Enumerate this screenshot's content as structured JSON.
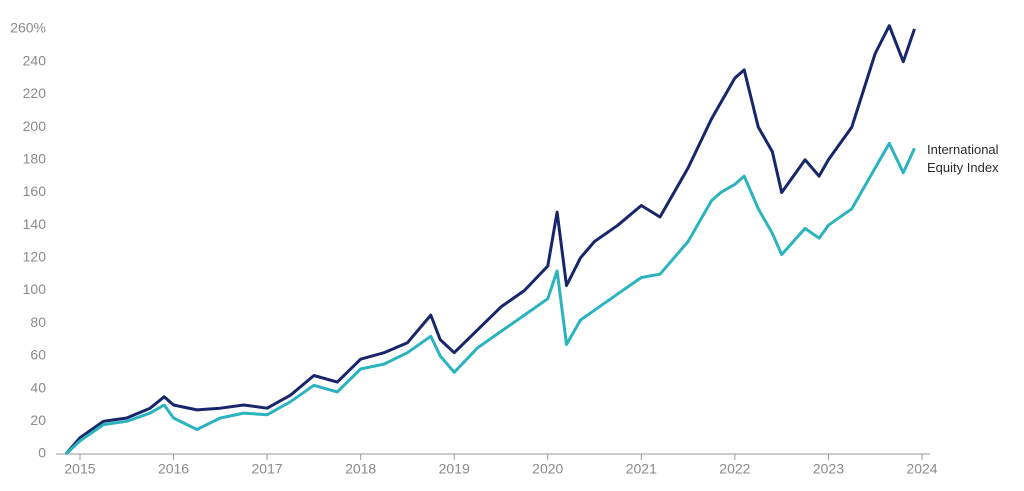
{
  "chart_data": {
    "type": "line",
    "x": [
      2014.85,
      2015.0,
      2015.25,
      2015.5,
      2015.75,
      2015.9,
      2016.0,
      2016.25,
      2016.5,
      2016.75,
      2017.0,
      2017.25,
      2017.5,
      2017.75,
      2018.0,
      2018.25,
      2018.5,
      2018.75,
      2018.85,
      2019.0,
      2019.25,
      2019.5,
      2019.75,
      2020.0,
      2020.1,
      2020.2,
      2020.35,
      2020.5,
      2020.75,
      2021.0,
      2021.2,
      2021.5,
      2021.75,
      2021.85,
      2022.0,
      2022.1,
      2022.25,
      2022.4,
      2022.5,
      2022.75,
      2022.9,
      2023.0,
      2023.25,
      2023.5,
      2023.65,
      2023.8,
      2023.92
    ],
    "series": [
      {
        "color": "#17266b",
        "values": [
          0,
          10,
          20,
          22,
          28,
          35,
          30,
          27,
          28,
          30,
          28,
          36,
          48,
          44,
          58,
          62,
          68,
          85,
          70,
          62,
          76,
          90,
          100,
          115,
          148,
          103,
          120,
          130,
          140,
          152,
          145,
          175,
          205,
          215,
          230,
          235,
          200,
          185,
          160,
          180,
          170,
          180,
          200,
          245,
          262,
          240,
          260
        ]
      },
      {
        "name": "International Equity Index",
        "color": "#2bb3c0",
        "values": [
          0,
          8,
          18,
          20,
          25,
          30,
          22,
          15,
          22,
          25,
          24,
          32,
          42,
          38,
          52,
          55,
          62,
          72,
          60,
          50,
          65,
          75,
          85,
          95,
          112,
          67,
          82,
          88,
          98,
          108,
          110,
          130,
          155,
          160,
          165,
          170,
          150,
          135,
          122,
          138,
          132,
          140,
          150,
          175,
          190,
          172,
          187
        ]
      }
    ],
    "xlim": [
      2014.84,
      2024.0
    ],
    "xticks": [
      2015,
      2016,
      2017,
      2018,
      2019,
      2020,
      2021,
      2022,
      2023,
      2024
    ],
    "ylim": [
      0,
      260
    ],
    "yticks": [
      0,
      20,
      40,
      60,
      80,
      100,
      120,
      140,
      160,
      180,
      200,
      220,
      240,
      {
        "value": 260,
        "label": "260%"
      }
    ]
  }
}
